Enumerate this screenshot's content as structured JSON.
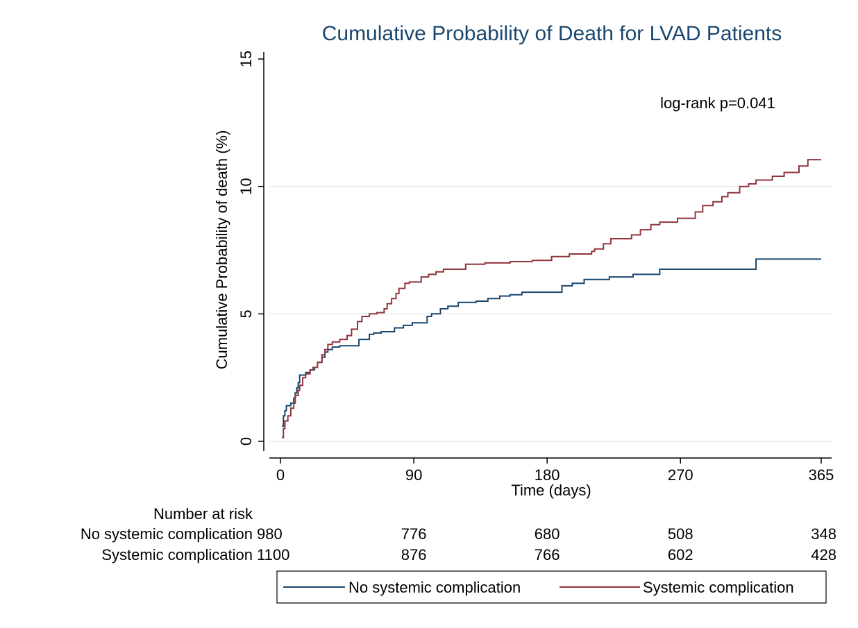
{
  "chart_data": {
    "type": "line",
    "title": "Cumulative Probability of Death for LVAD Patients",
    "xlabel": "Time (days)",
    "ylabel": "Cumulative Probability of death (%)",
    "xlim": [
      0,
      365
    ],
    "ylim": [
      0,
      15
    ],
    "x_ticks": [
      0,
      90,
      180,
      270,
      365
    ],
    "x_tick_labels": [
      "0",
      "90",
      "180",
      "270",
      "365"
    ],
    "y_ticks": [
      0,
      5,
      10,
      15
    ],
    "y_tick_labels": [
      "0",
      "5",
      "10",
      "15"
    ],
    "grid": "horizontal",
    "step": true,
    "annotation": "log-rank p=0.041",
    "legend_position": "bottom",
    "series": [
      {
        "name": "No systemic complication",
        "color": "#1a476f",
        "points": [
          [
            1,
            0.6
          ],
          [
            2,
            1.0
          ],
          [
            3,
            1.2
          ],
          [
            4,
            1.4
          ],
          [
            7,
            1.5
          ],
          [
            9,
            1.7
          ],
          [
            10,
            1.9
          ],
          [
            11,
            2.1
          ],
          [
            12,
            2.3
          ],
          [
            13,
            2.6
          ],
          [
            15,
            2.6
          ],
          [
            17,
            2.7
          ],
          [
            20,
            2.8
          ],
          [
            23,
            2.9
          ],
          [
            25,
            3.1
          ],
          [
            28,
            3.3
          ],
          [
            30,
            3.5
          ],
          [
            32,
            3.6
          ],
          [
            35,
            3.7
          ],
          [
            40,
            3.75
          ],
          [
            46,
            3.75
          ],
          [
            53,
            4.0
          ],
          [
            60,
            4.2
          ],
          [
            63,
            4.25
          ],
          [
            68,
            4.3
          ],
          [
            77,
            4.45
          ],
          [
            83,
            4.55
          ],
          [
            89,
            4.65
          ],
          [
            99,
            4.9
          ],
          [
            102,
            5.0
          ],
          [
            108,
            5.2
          ],
          [
            113,
            5.3
          ],
          [
            120,
            5.45
          ],
          [
            132,
            5.5
          ],
          [
            140,
            5.6
          ],
          [
            148,
            5.7
          ],
          [
            155,
            5.75
          ],
          [
            163,
            5.85
          ],
          [
            175,
            5.85
          ],
          [
            190,
            6.1
          ],
          [
            197,
            6.2
          ],
          [
            205,
            6.35
          ],
          [
            222,
            6.45
          ],
          [
            238,
            6.55
          ],
          [
            256,
            6.75
          ],
          [
            263,
            6.75
          ],
          [
            320,
            6.75
          ],
          [
            321,
            7.15
          ],
          [
            365,
            7.15
          ]
        ]
      },
      {
        "name": "Systemic complication",
        "color": "#90353b",
        "points": [
          [
            1,
            0.15
          ],
          [
            2,
            0.5
          ],
          [
            3,
            0.8
          ],
          [
            5,
            1.0
          ],
          [
            7,
            1.3
          ],
          [
            9,
            1.5
          ],
          [
            10,
            1.8
          ],
          [
            12,
            2.0
          ],
          [
            13,
            2.2
          ],
          [
            15,
            2.5
          ],
          [
            17,
            2.65
          ],
          [
            20,
            2.8
          ],
          [
            22,
            2.9
          ],
          [
            25,
            3.1
          ],
          [
            28,
            3.4
          ],
          [
            30,
            3.6
          ],
          [
            32,
            3.8
          ],
          [
            35,
            3.9
          ],
          [
            40,
            4.0
          ],
          [
            45,
            4.15
          ],
          [
            48,
            4.4
          ],
          [
            52,
            4.7
          ],
          [
            55,
            4.9
          ],
          [
            60,
            5.0
          ],
          [
            65,
            5.05
          ],
          [
            70,
            5.2
          ],
          [
            72,
            5.4
          ],
          [
            75,
            5.6
          ],
          [
            78,
            5.8
          ],
          [
            80,
            6.0
          ],
          [
            84,
            6.2
          ],
          [
            87,
            6.25
          ],
          [
            95,
            6.45
          ],
          [
            100,
            6.55
          ],
          [
            105,
            6.65
          ],
          [
            110,
            6.75
          ],
          [
            125,
            6.95
          ],
          [
            138,
            7.0
          ],
          [
            155,
            7.05
          ],
          [
            170,
            7.1
          ],
          [
            183,
            7.25
          ],
          [
            195,
            7.35
          ],
          [
            210,
            7.45
          ],
          [
            212,
            7.55
          ],
          [
            218,
            7.75
          ],
          [
            223,
            7.95
          ],
          [
            237,
            8.1
          ],
          [
            243,
            8.3
          ],
          [
            250,
            8.5
          ],
          [
            256,
            8.6
          ],
          [
            268,
            8.75
          ],
          [
            280,
            9.0
          ],
          [
            285,
            9.25
          ],
          [
            292,
            9.4
          ],
          [
            298,
            9.6
          ],
          [
            302,
            9.75
          ],
          [
            310,
            10.0
          ],
          [
            316,
            10.1
          ],
          [
            321,
            10.25
          ],
          [
            332,
            10.4
          ],
          [
            340,
            10.55
          ],
          [
            350,
            10.8
          ],
          [
            356,
            11.05
          ],
          [
            365,
            11.05
          ]
        ]
      }
    ],
    "risk_table": {
      "header": "Number at risk",
      "x": [
        0,
        90,
        180,
        270,
        365
      ],
      "rows": [
        {
          "label": "No systemic complication",
          "values": [
            "980",
            "776",
            "680",
            "508",
            "348"
          ]
        },
        {
          "label": "Systemic complication",
          "values": [
            "1100",
            "876",
            "766",
            "602",
            "428"
          ]
        }
      ]
    }
  }
}
